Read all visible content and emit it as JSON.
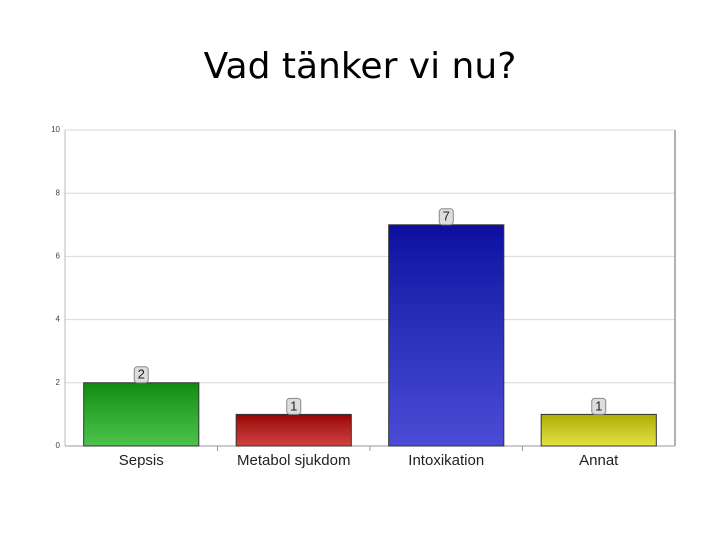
{
  "chart_data": {
    "type": "bar",
    "title": "Vad tänker vi nu?",
    "categories": [
      "Sepsis",
      "Metabol sjukdom",
      "Intoxikation",
      "Annat"
    ],
    "values": [
      2,
      1,
      7,
      1
    ],
    "colors": [
      "#10b010",
      "#c00000",
      "#1010c8",
      "#d8d800"
    ],
    "ylim": [
      0,
      10
    ],
    "yticks": [
      0,
      2,
      4,
      6,
      8,
      10
    ],
    "grid": true
  }
}
